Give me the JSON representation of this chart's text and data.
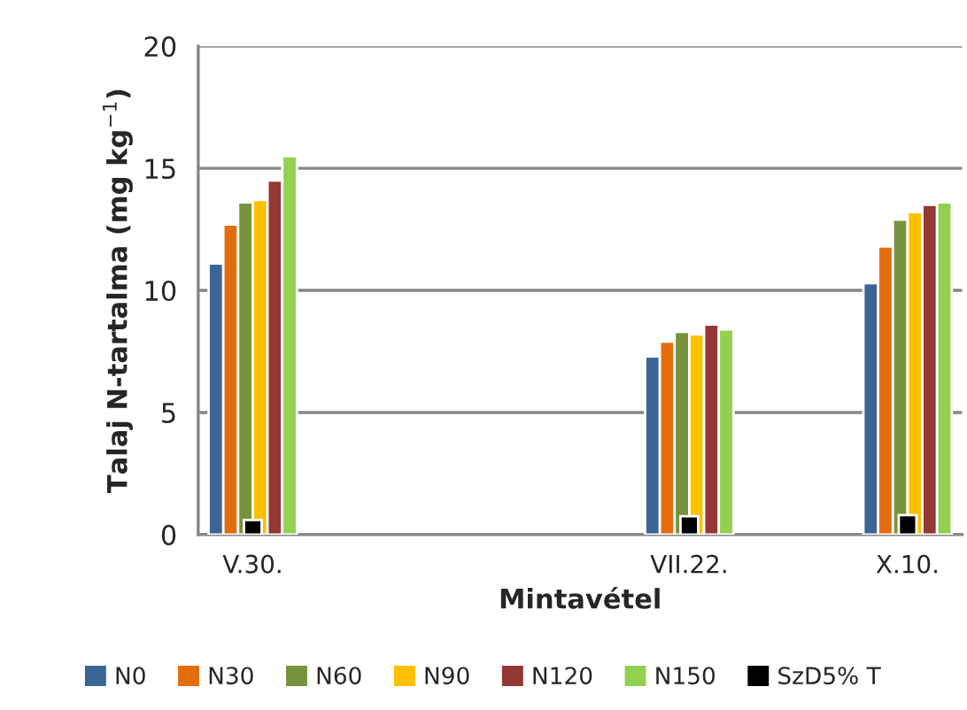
{
  "chart_data": {
    "type": "bar",
    "xlabel": "Mintavétel",
    "ylabel": "Talaj N-tartalma (mg kg$^{−1}$)",
    "categories": [
      "V.30.",
      null,
      null,
      null,
      "VII.22.",
      null,
      "X.10."
    ],
    "series": [
      {
        "name": "N0",
        "color": "#3a6596",
        "values": [
          11.1,
          null,
          null,
          null,
          7.3,
          null,
          10.3
        ]
      },
      {
        "name": "N30",
        "color": "#e46c0a",
        "values": [
          12.7,
          null,
          null,
          null,
          7.9,
          null,
          11.8
        ]
      },
      {
        "name": "N60",
        "color": "#77933c",
        "values": [
          13.6,
          null,
          null,
          null,
          8.3,
          null,
          12.9
        ]
      },
      {
        "name": "N90",
        "color": "#ffc000",
        "values": [
          13.7,
          null,
          null,
          null,
          8.2,
          null,
          13.2
        ]
      },
      {
        "name": "N120",
        "color": "#953735",
        "values": [
          14.5,
          null,
          null,
          null,
          8.6,
          null,
          13.5
        ]
      },
      {
        "name": "N150",
        "color": "#92d050",
        "values": [
          15.5,
          null,
          null,
          null,
          8.4,
          null,
          13.6
        ]
      },
      {
        "name": "SzD5% T",
        "color": "#000000",
        "values": [
          0.6,
          null,
          null,
          null,
          0.75,
          null,
          0.8
        ]
      }
    ],
    "ylim": [
      0,
      20
    ],
    "yticks": [
      0,
      5,
      10,
      15,
      20
    ],
    "grid": "y",
    "legend": "bottom"
  }
}
